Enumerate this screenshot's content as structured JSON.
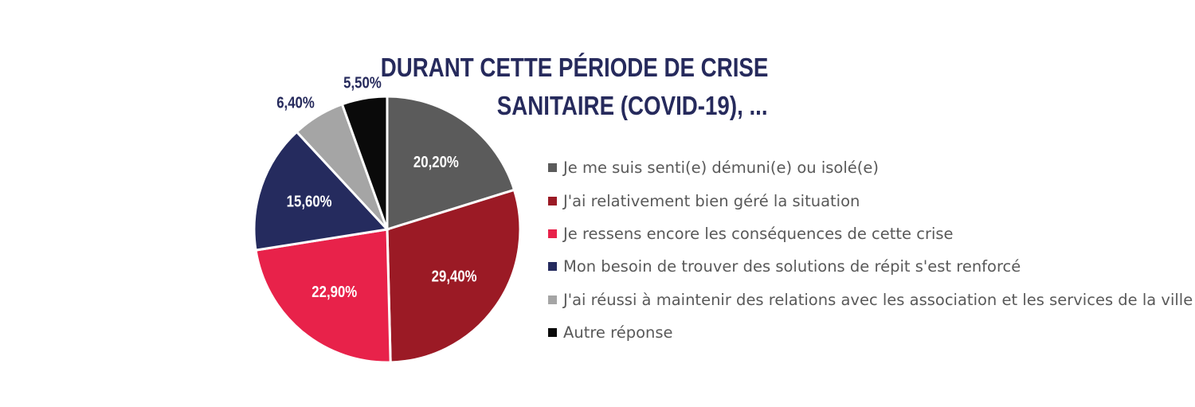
{
  "chart_data": {
    "type": "pie",
    "title": [
      "DURANT CETTE PÉRIODE DE CRISE",
      "SANITAIRE (COVID-19), ..."
    ],
    "legend_position": "right",
    "slices": [
      {
        "name": "Je me suis senti(e) démuni(e) ou isolé(e)",
        "value": 20.2,
        "label": "20,20%",
        "color": "#5b5b5b",
        "label_color": "#ffffff"
      },
      {
        "name": "J'ai relativement bien géré la situation",
        "value": 29.4,
        "label": "29,40%",
        "color": "#9b1a25",
        "label_color": "#ffffff"
      },
      {
        "name": "Je ressens encore les conséquences de cette crise",
        "value": 22.9,
        "label": "22,90%",
        "color": "#e8224a",
        "label_color": "#ffffff"
      },
      {
        "name": "Mon besoin de trouver des solutions de répit s'est renforcé",
        "value": 15.6,
        "label": "15,60%",
        "color": "#252b5e",
        "label_color": "#ffffff"
      },
      {
        "name": "J'ai réussi à maintenir des relations avec les association et les services de la ville",
        "value": 6.4,
        "label": "6,40%",
        "color": "#a5a5a5",
        "label_color": "#262a5c"
      },
      {
        "name": "Autre réponse",
        "value": 5.5,
        "label": "5,50%",
        "color": "#0a0a0a",
        "label_color": "#262a5c"
      }
    ]
  }
}
